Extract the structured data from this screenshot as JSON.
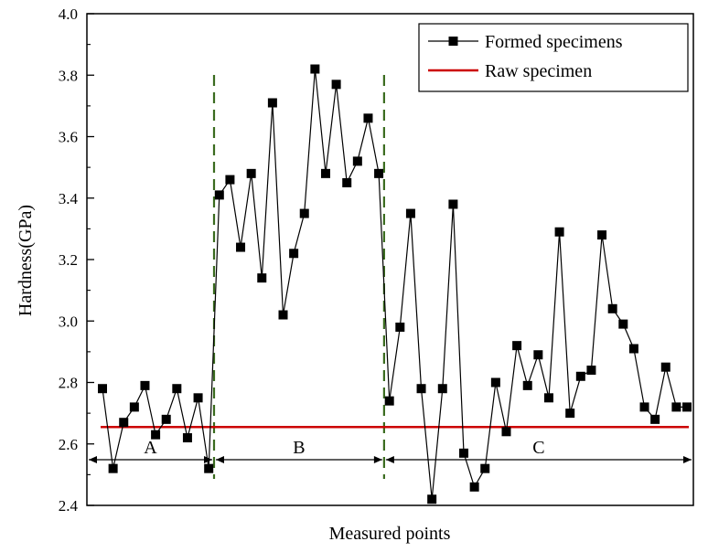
{
  "chart_data": {
    "type": "line",
    "title": "",
    "xlabel": "Measured points",
    "ylabel": "Hardness(GPa)",
    "ylim": [
      2.4,
      4.0
    ],
    "yticks": [
      "2.4",
      "2.6",
      "2.8",
      "3.0",
      "3.2",
      "3.4",
      "3.6",
      "3.8",
      "4.0"
    ],
    "grid": false,
    "legend_position": "top-right",
    "series": [
      {
        "name": "Formed specimens",
        "color": "#000000",
        "marker": "square",
        "x": [
          1,
          2,
          3,
          4,
          5,
          6,
          7,
          8,
          9,
          10,
          11,
          12,
          13,
          14,
          15,
          16,
          17,
          18,
          19,
          20,
          21,
          22,
          23,
          24,
          25,
          26,
          27,
          28,
          29,
          30,
          31,
          32,
          33,
          34,
          35,
          36,
          37,
          38,
          39,
          40,
          41,
          42,
          43,
          44,
          45,
          46,
          47,
          48,
          49,
          50,
          51,
          52,
          53,
          54,
          55,
          56
        ],
        "values": [
          2.78,
          2.52,
          2.67,
          2.72,
          2.79,
          2.63,
          2.68,
          2.78,
          2.62,
          2.75,
          2.52,
          3.41,
          3.46,
          3.24,
          3.48,
          3.14,
          3.71,
          3.02,
          3.22,
          3.35,
          3.82,
          3.48,
          3.77,
          3.45,
          3.52,
          3.66,
          3.48,
          2.74,
          2.98,
          3.35,
          2.78,
          2.42,
          2.78,
          3.38,
          2.57,
          2.46,
          2.52,
          2.8,
          2.64,
          2.92,
          2.79,
          2.89,
          2.75,
          3.29,
          2.7,
          2.82,
          2.84,
          3.28,
          3.04,
          2.99,
          2.91,
          2.72,
          2.68,
          2.85,
          2.72,
          2.72
        ]
      },
      {
        "name": "Raw specimen",
        "color": "#cc0000",
        "value": 2.655
      }
    ],
    "regions": [
      {
        "label": "A",
        "from": 1,
        "to": 11
      },
      {
        "label": "B",
        "from": 11,
        "to": 27
      },
      {
        "label": "C",
        "from": 27,
        "to": 56
      }
    ],
    "region_separators": [
      11,
      27
    ]
  }
}
